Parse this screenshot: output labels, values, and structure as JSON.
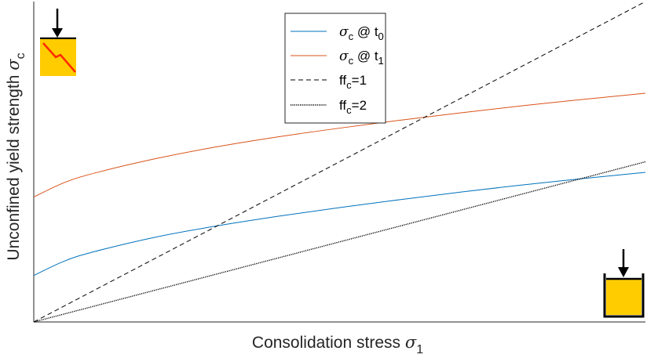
{
  "chart_data": {
    "type": "line",
    "title": "",
    "xlabel": {
      "text": "Consolidation stress ",
      "symbol": "σ",
      "sub": "1"
    },
    "ylabel": {
      "text": "Unconfined yield strength ",
      "symbol": "σ",
      "sub": "c"
    },
    "xlim": [
      0,
      1
    ],
    "ylim": [
      0,
      1
    ],
    "grid": false,
    "x_ticks_labeled": false,
    "y_ticks_labeled": false,
    "legend_position": "top-center",
    "series": [
      {
        "name": {
          "symbol": "σ",
          "sub": "c",
          "mid": " @ t",
          "sub2": "0"
        },
        "color": "#0072BD",
        "style": "solid",
        "x": [
          0,
          0.05,
          0.1,
          0.2,
          0.3,
          0.4,
          0.5,
          0.6,
          0.7,
          0.8,
          0.9,
          1.0
        ],
        "y": [
          0.145,
          0.19,
          0.22,
          0.265,
          0.3,
          0.33,
          0.357,
          0.382,
          0.406,
          0.428,
          0.448,
          0.467
        ]
      },
      {
        "name": {
          "symbol": "σ",
          "sub": "c",
          "mid": " @ t",
          "sub2": "1"
        },
        "color": "#D95319",
        "style": "solid",
        "x": [
          0,
          0.05,
          0.1,
          0.2,
          0.3,
          0.4,
          0.5,
          0.6,
          0.7,
          0.8,
          0.9,
          1.0
        ],
        "y": [
          0.39,
          0.435,
          0.465,
          0.51,
          0.547,
          0.578,
          0.605,
          0.63,
          0.653,
          0.675,
          0.695,
          0.714
        ]
      },
      {
        "name": {
          "text": "ff",
          "sub": "c",
          "mid": "=1"
        },
        "color": "#000000",
        "style": "dashed",
        "x": [
          0,
          1.0
        ],
        "y": [
          0,
          1.0
        ]
      },
      {
        "name": {
          "text": "ff",
          "sub": "c",
          "mid": "=2"
        },
        "color": "#000000",
        "style": "dotted",
        "x": [
          0,
          1.0
        ],
        "y": [
          0,
          0.5
        ]
      }
    ],
    "annotations": [
      {
        "type": "icon",
        "name": "unconfined-sample-icon",
        "location": "top-left",
        "color": "#FFCC00",
        "accent": "#FF0000"
      },
      {
        "type": "icon",
        "name": "confined-sample-icon",
        "location": "bottom-right",
        "color": "#FFCC00"
      }
    ]
  }
}
